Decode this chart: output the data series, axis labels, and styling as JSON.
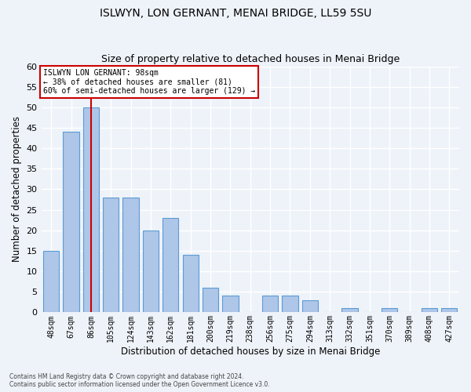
{
  "title": "ISLWYN, LON GERNANT, MENAI BRIDGE, LL59 5SU",
  "subtitle": "Size of property relative to detached houses in Menai Bridge",
  "xlabel": "Distribution of detached houses by size in Menai Bridge",
  "ylabel": "Number of detached properties",
  "categories": [
    "48sqm",
    "67sqm",
    "86sqm",
    "105sqm",
    "124sqm",
    "143sqm",
    "162sqm",
    "181sqm",
    "200sqm",
    "219sqm",
    "238sqm",
    "256sqm",
    "275sqm",
    "294sqm",
    "313sqm",
    "332sqm",
    "351sqm",
    "370sqm",
    "389sqm",
    "408sqm",
    "427sqm"
  ],
  "values": [
    15,
    44,
    50,
    28,
    28,
    20,
    23,
    14,
    6,
    4,
    0,
    4,
    4,
    3,
    0,
    1,
    0,
    1,
    0,
    1,
    1
  ],
  "bar_color": "#aec6e8",
  "bar_edge_color": "#5b9bd5",
  "background_color": "#eef3f9",
  "grid_color": "#ffffff",
  "vline_x": 2,
  "vline_color": "#cc0000",
  "annotation_text": "ISLWYN LON GERNANT: 98sqm\n← 38% of detached houses are smaller (81)\n60% of semi-detached houses are larger (129) →",
  "annotation_box_color": "#ffffff",
  "annotation_box_edge_color": "#cc0000",
  "footer_text": "Contains HM Land Registry data © Crown copyright and database right 2024.\nContains public sector information licensed under the Open Government Licence v3.0.",
  "ylim": [
    0,
    60
  ],
  "title_fontsize": 10,
  "subtitle_fontsize": 9,
  "ylabel_fontsize": 8.5,
  "xlabel_fontsize": 8.5
}
